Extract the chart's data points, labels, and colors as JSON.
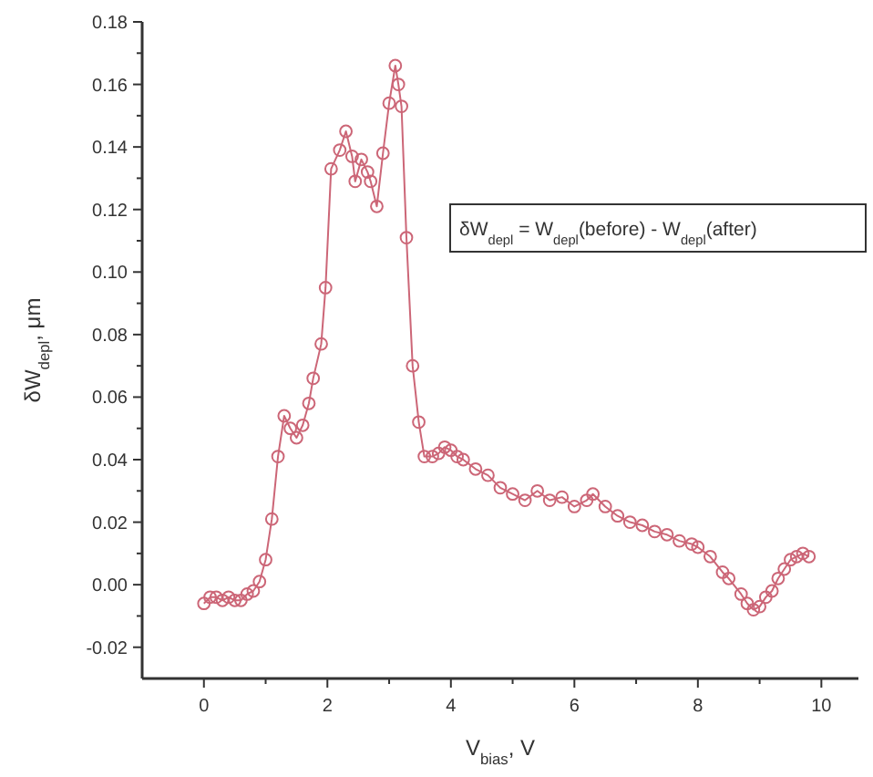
{
  "chart_data": {
    "type": "line",
    "xlabel": "V$_{bias}$, V",
    "ylabel": "δW$_{depl}$, μm",
    "annotations": [
      "δW$_{depl}$ = W$_{depl}$(before) - W$_{depl}$(after)"
    ],
    "xlim": [
      -1,
      10.6
    ],
    "ylim": [
      -0.03,
      0.18
    ],
    "xticks": [
      0,
      {
        "value": 1,
        "label": null
      },
      2,
      {
        "value": 3,
        "label": null
      },
      4,
      {
        "value": 5,
        "label": null
      },
      6,
      {
        "value": 7,
        "label": null
      },
      8,
      {
        "value": 9,
        "label": null
      },
      10
    ],
    "yticks": [
      {
        "value": -0.02,
        "label": "-0.02"
      },
      {
        "value": -0.01,
        "label": null
      },
      {
        "value": 0,
        "label": "0.00"
      },
      {
        "value": 0.01,
        "label": null
      },
      {
        "value": 0.02,
        "label": "0.02"
      },
      {
        "value": 0.03,
        "label": null
      },
      {
        "value": 0.04,
        "label": "0.04"
      },
      {
        "value": 0.05,
        "label": null
      },
      {
        "value": 0.06,
        "label": "0.06"
      },
      {
        "value": 0.07,
        "label": null
      },
      {
        "value": 0.08,
        "label": "0.08"
      },
      {
        "value": 0.09,
        "label": null
      },
      {
        "value": 0.1,
        "label": "0.10"
      },
      {
        "value": 0.11,
        "label": null
      },
      {
        "value": 0.12,
        "label": "0.12"
      },
      {
        "value": 0.13,
        "label": null
      },
      {
        "value": 0.14,
        "label": "0.14"
      },
      {
        "value": 0.15,
        "label": null
      },
      {
        "value": 0.16,
        "label": "0.16"
      },
      {
        "value": 0.17,
        "label": null
      },
      {
        "value": 0.18,
        "label": "0.18"
      }
    ],
    "marker": "circle",
    "series": [
      {
        "color": "#cc6677",
        "x": [
          0,
          0.1,
          0.2,
          0.3,
          0.4,
          0.5,
          0.6,
          0.7,
          0.8,
          0.9,
          1.0,
          1.1,
          1.2,
          1.3,
          1.4,
          1.5,
          1.6,
          1.7,
          1.77,
          1.9,
          1.97,
          2.06,
          2.2,
          2.3,
          2.4,
          2.45,
          2.55,
          2.65,
          2.7,
          2.8,
          2.9,
          3.0,
          3.1,
          3.15,
          3.2,
          3.28,
          3.38,
          3.48,
          3.57,
          3.7,
          3.8,
          3.9,
          4.0,
          4.1,
          4.2,
          4.4,
          4.6,
          4.8,
          5.0,
          5.2,
          5.4,
          5.6,
          5.8,
          6.0,
          6.2,
          6.3,
          6.5,
          6.7,
          6.9,
          7.1,
          7.3,
          7.5,
          7.7,
          7.9,
          8.0,
          8.2,
          8.4,
          8.5,
          8.7,
          8.8,
          8.9,
          9.0,
          9.1,
          9.2,
          9.3,
          9.4,
          9.5,
          9.6,
          9.7,
          9.8
        ],
        "values": [
          -0.006,
          -0.004,
          -0.004,
          -0.005,
          -0.004,
          -0.005,
          -0.005,
          -0.003,
          -0.002,
          0.001,
          0.008,
          0.021,
          0.041,
          0.054,
          0.05,
          0.047,
          0.051,
          0.058,
          0.066,
          0.077,
          0.095,
          0.133,
          0.139,
          0.145,
          0.137,
          0.129,
          0.136,
          0.132,
          0.129,
          0.121,
          0.138,
          0.154,
          0.166,
          0.16,
          0.153,
          0.111,
          0.07,
          0.052,
          0.041,
          0.041,
          0.042,
          0.044,
          0.043,
          0.041,
          0.04,
          0.037,
          0.035,
          0.031,
          0.029,
          0.027,
          0.03,
          0.027,
          0.028,
          0.025,
          0.027,
          0.029,
          0.025,
          0.022,
          0.02,
          0.019,
          0.017,
          0.016,
          0.014,
          0.013,
          0.012,
          0.009,
          0.004,
          0.002,
          -0.003,
          -0.006,
          -0.008,
          -0.007,
          -0.004,
          -0.002,
          0.002,
          0.005,
          0.008,
          0.009,
          0.01,
          0.009
        ]
      }
    ]
  }
}
